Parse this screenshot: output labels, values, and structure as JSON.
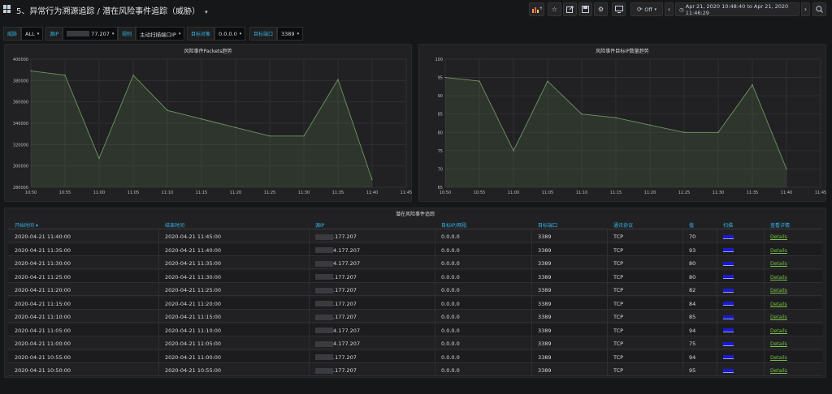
{
  "header": {
    "title": "5、异常行为溯源追踪 / 潜在风险事件追踪（威胁）",
    "time_range": "Apr 21, 2020 10:48:40 to Apr 21, 2020 11:46:29",
    "refresh_label": "Off"
  },
  "variables": [
    {
      "label": "威胁",
      "value": "ALL"
    },
    {
      "label": "源IP",
      "value": "77.207"
    },
    {
      "label": "规则",
      "value": "主动扫描端口IP"
    },
    {
      "label": "目标对象",
      "value": "0.0.0.0"
    },
    {
      "label": "目标端口",
      "value": "3389"
    }
  ],
  "panels": [
    {
      "title": "风险事件Packets趋势",
      "chart_data": {
        "type": "area",
        "x": [
          "10:50",
          "10:55",
          "11:00",
          "11:05",
          "11:10",
          "11:15",
          "11:20",
          "11:25",
          "11:30",
          "11:35",
          "11:40"
        ],
        "x_ticks": [
          "10:50",
          "10:55",
          "11:00",
          "11:05",
          "11:10",
          "11:15",
          "11:20",
          "11:25",
          "11:30",
          "11:35",
          "11:40",
          "11:45"
        ],
        "values": [
          389000,
          385000,
          307000,
          385000,
          352000,
          344000,
          336000,
          328000,
          328000,
          381000,
          287000
        ],
        "y_ticks": [
          "400000",
          "380000",
          "360000",
          "340000",
          "320000",
          "300000",
          "280000"
        ],
        "ylim": [
          280000,
          400000
        ],
        "grid": true,
        "color": "#7eb26d"
      }
    },
    {
      "title": "风险事件目标IP数量趋势",
      "chart_data": {
        "type": "area",
        "x": [
          "10:50",
          "10:55",
          "11:00",
          "11:05",
          "11:10",
          "11:15",
          "11:20",
          "11:25",
          "11:30",
          "11:35",
          "11:40"
        ],
        "x_ticks": [
          "10:50",
          "10:55",
          "11:00",
          "11:05",
          "11:10",
          "11:15",
          "11:20",
          "11:25",
          "11:30",
          "11:35",
          "11:40",
          "11:45"
        ],
        "values": [
          95,
          94,
          75,
          94,
          85,
          84,
          82,
          80,
          80,
          93,
          70
        ],
        "y_ticks": [
          "100",
          "95",
          "90",
          "85",
          "80",
          "75",
          "70",
          "65"
        ],
        "ylim": [
          65,
          100
        ],
        "grid": true,
        "color": "#7eb26d"
      }
    }
  ],
  "table": {
    "title": "潜在风险事件追踪",
    "columns": [
      "开始时间 ▾",
      "结束时间",
      "源IP",
      "目标IP/网段",
      "目标端口",
      "通讯协议",
      "值",
      "扫描",
      "查看详情"
    ],
    "rows": [
      [
        "2020-04-21 11:40:00",
        "2020-04-21 11:45:00",
        ".177.207",
        "0.0.0.0",
        "3389",
        "TCP",
        "70",
        "",
        "Details"
      ],
      [
        "2020-04-21 11:35:00",
        "2020-04-21 11:40:00",
        "4.177.207",
        "0.0.0.0",
        "3389",
        "TCP",
        "93",
        "",
        "Details"
      ],
      [
        "2020-04-21 11:30:00",
        "2020-04-21 11:35:00",
        "4.177.207",
        "0.0.0.0",
        "3389",
        "TCP",
        "80",
        "",
        "Details"
      ],
      [
        "2020-04-21 11:25:00",
        "2020-04-21 11:30:00",
        ".177.207",
        "0.0.0.0",
        "3389",
        "TCP",
        "80",
        "",
        "Details"
      ],
      [
        "2020-04-21 11:20:00",
        "2020-04-21 11:25:00",
        ".177.207",
        "0.0.0.0",
        "3389",
        "TCP",
        "82",
        "",
        "Details"
      ],
      [
        "2020-04-21 11:15:00",
        "2020-04-21 11:20:00",
        ".177.207",
        "0.0.0.0",
        "3389",
        "TCP",
        "84",
        "",
        "Details"
      ],
      [
        "2020-04-21 11:10:00",
        "2020-04-21 11:15:00",
        ".177.207",
        "0.0.0.0",
        "3389",
        "TCP",
        "85",
        "",
        "Details"
      ],
      [
        "2020-04-21 11:05:00",
        "2020-04-21 11:10:00",
        "4.177.207",
        "0.0.0.0",
        "3389",
        "TCP",
        "94",
        "",
        "Details"
      ],
      [
        "2020-04-21 11:00:00",
        "2020-04-21 11:05:00",
        "4.177.207",
        "0.0.0.0",
        "3389",
        "TCP",
        "75",
        "",
        "Details"
      ],
      [
        "2020-04-21 10:55:00",
        "2020-04-21 11:00:00",
        ".177.207",
        "0.0.0.0",
        "3389",
        "TCP",
        "94",
        "",
        "Details"
      ],
      [
        "2020-04-21 10:50:00",
        "2020-04-21 10:55:00",
        ".177.207",
        "0.0.0.0",
        "3389",
        "TCP",
        "95",
        "",
        "Details"
      ]
    ]
  }
}
